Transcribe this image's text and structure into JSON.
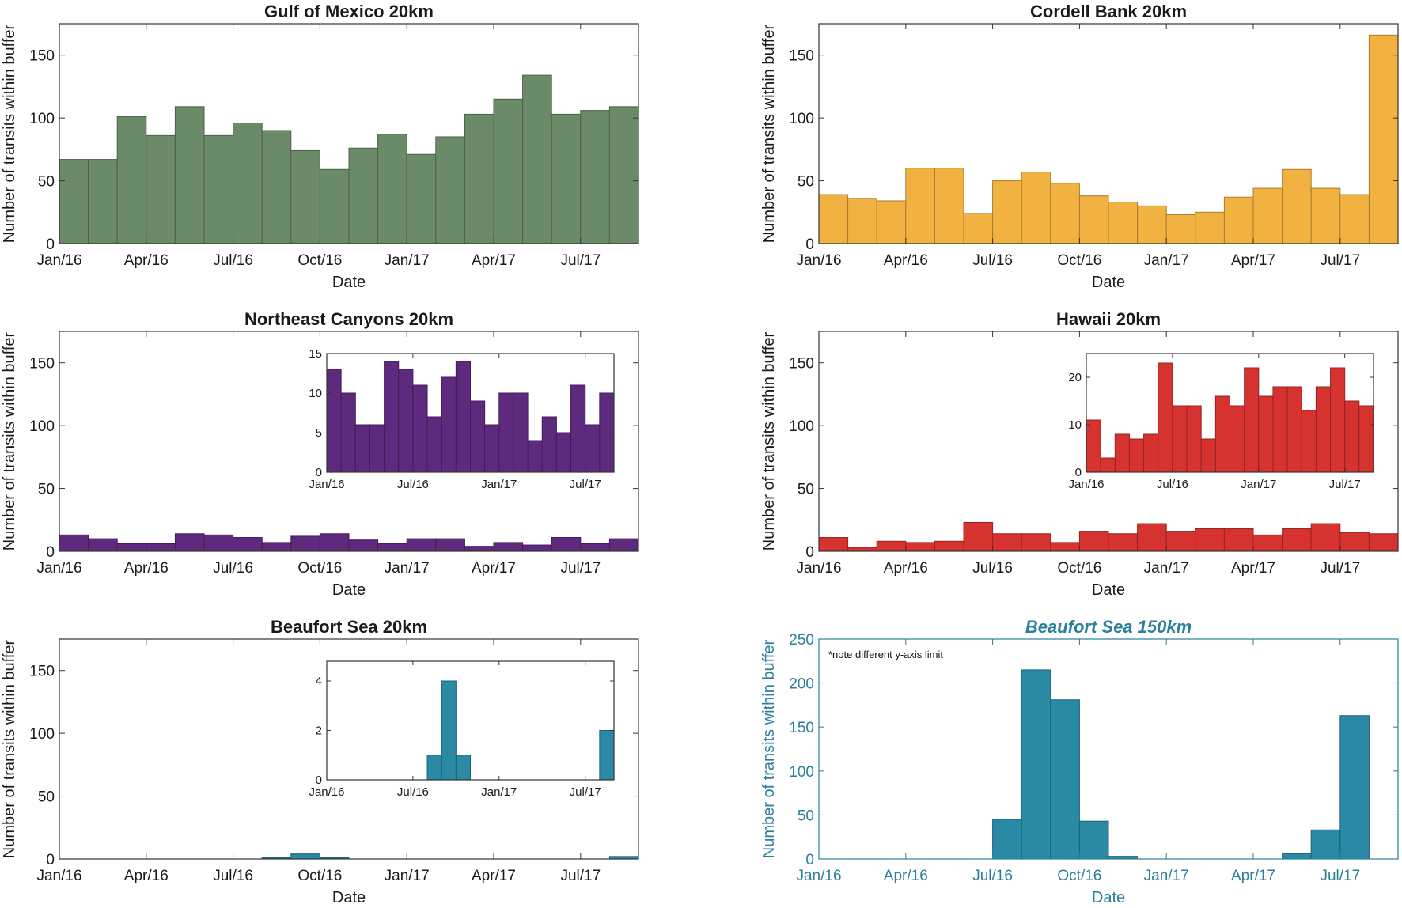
{
  "chart_data": [
    {
      "id": "gulf",
      "type": "bar",
      "title": "Gulf of Mexico 20km",
      "xlabel": "Date",
      "ylabel": "Number of transits within buffer",
      "ylim": [
        0,
        175
      ],
      "yticks": [
        0,
        50,
        100,
        150
      ],
      "xtick_labels": [
        "Jan/16",
        "Apr/16",
        "Jul/16",
        "Oct/16",
        "Jan/17",
        "Apr/17",
        "Jul/17"
      ],
      "color": "#6b8a68",
      "values": [
        67,
        67,
        101,
        86,
        109,
        86,
        96,
        90,
        74,
        59,
        76,
        87,
        71,
        85,
        103,
        115,
        134,
        103,
        106,
        109
      ]
    },
    {
      "id": "cordell",
      "type": "bar",
      "title": "Cordell Bank 20km",
      "xlabel": "Date",
      "ylabel": "Number of transits within buffer",
      "ylim": [
        0,
        175
      ],
      "yticks": [
        0,
        50,
        100,
        150
      ],
      "xtick_labels": [
        "Jan/16",
        "Apr/16",
        "Jul/16",
        "Oct/16",
        "Jan/17",
        "Apr/17",
        "Jul/17"
      ],
      "color": "#f2b241",
      "values": [
        39,
        36,
        34,
        60,
        60,
        24,
        50,
        57,
        48,
        38,
        33,
        30,
        23,
        25,
        37,
        44,
        59,
        44,
        39,
        166
      ]
    },
    {
      "id": "northeast",
      "type": "bar",
      "title": "Northeast Canyons 20km",
      "xlabel": "Date",
      "ylabel": "Number of transits within buffer",
      "ylim": [
        0,
        175
      ],
      "yticks": [
        0,
        50,
        100,
        150
      ],
      "xtick_labels": [
        "Jan/16",
        "Apr/16",
        "Jul/16",
        "Oct/16",
        "Jan/17",
        "Apr/17",
        "Jul/17"
      ],
      "color": "#5e2a7e",
      "values": [
        13,
        10,
        6,
        6,
        14,
        13,
        11,
        7,
        12,
        14,
        9,
        6,
        10,
        10,
        4,
        7,
        5,
        11,
        6,
        10
      ],
      "inset": {
        "ylim": [
          0,
          15
        ],
        "yticks": [
          0,
          5,
          10,
          15
        ],
        "xtick_labels": [
          "Jan/16",
          "Jul/16",
          "Jan/17",
          "Jul/17"
        ]
      }
    },
    {
      "id": "hawaii",
      "type": "bar",
      "title": "Hawaii 20km",
      "xlabel": "Date",
      "ylabel": "Number of transits within buffer",
      "ylim": [
        0,
        175
      ],
      "yticks": [
        0,
        50,
        100,
        150
      ],
      "xtick_labels": [
        "Jan/16",
        "Apr/16",
        "Jul/16",
        "Oct/16",
        "Jan/17",
        "Apr/17",
        "Jul/17"
      ],
      "color": "#d63330",
      "values": [
        11,
        3,
        8,
        7,
        8,
        23,
        14,
        14,
        7,
        16,
        14,
        22,
        16,
        18,
        18,
        13,
        18,
        22,
        15,
        14
      ],
      "inset": {
        "ylim": [
          0,
          25
        ],
        "yticks": [
          0,
          10,
          20
        ],
        "xtick_labels": [
          "Jan/16",
          "Jul/16",
          "Jan/17",
          "Jul/17"
        ]
      }
    },
    {
      "id": "beaufort20",
      "type": "bar",
      "title": "Beaufort Sea 20km",
      "xlabel": "Date",
      "ylabel": "Number of transits within buffer",
      "ylim": [
        0,
        175
      ],
      "yticks": [
        0,
        50,
        100,
        150
      ],
      "xtick_labels": [
        "Jan/16",
        "Apr/16",
        "Jul/16",
        "Oct/16",
        "Jan/17",
        "Apr/17",
        "Jul/17"
      ],
      "color": "#2a8aa6",
      "values": [
        0,
        0,
        0,
        0,
        0,
        0,
        0,
        1,
        4,
        1,
        0,
        0,
        0,
        0,
        0,
        0,
        0,
        0,
        0,
        2
      ],
      "inset": {
        "ylim": [
          0,
          4.8
        ],
        "yticks": [
          0,
          2,
          4
        ],
        "xtick_labels": [
          "Jan/16",
          "Jul/16",
          "Jan/17",
          "Jul/17"
        ]
      }
    },
    {
      "id": "beaufort150",
      "type": "bar",
      "title": "Beaufort Sea 150km",
      "title_italic": true,
      "accent": "#2a7f9a",
      "note": "*note different y-axis limit",
      "xlabel": "Date",
      "ylabel": "Number of transits within buffer",
      "ylim": [
        0,
        250
      ],
      "yticks": [
        0,
        50,
        100,
        150,
        200,
        250
      ],
      "xtick_labels": [
        "Jan/16",
        "Apr/16",
        "Jul/16",
        "Oct/16",
        "Jan/17",
        "Apr/17",
        "Jul/17"
      ],
      "color": "#2a8aa6",
      "values": [
        0,
        0,
        0,
        0,
        0,
        0,
        45,
        215,
        181,
        43,
        3,
        0,
        0,
        0,
        0,
        0,
        6,
        33,
        163,
        0
      ]
    }
  ]
}
